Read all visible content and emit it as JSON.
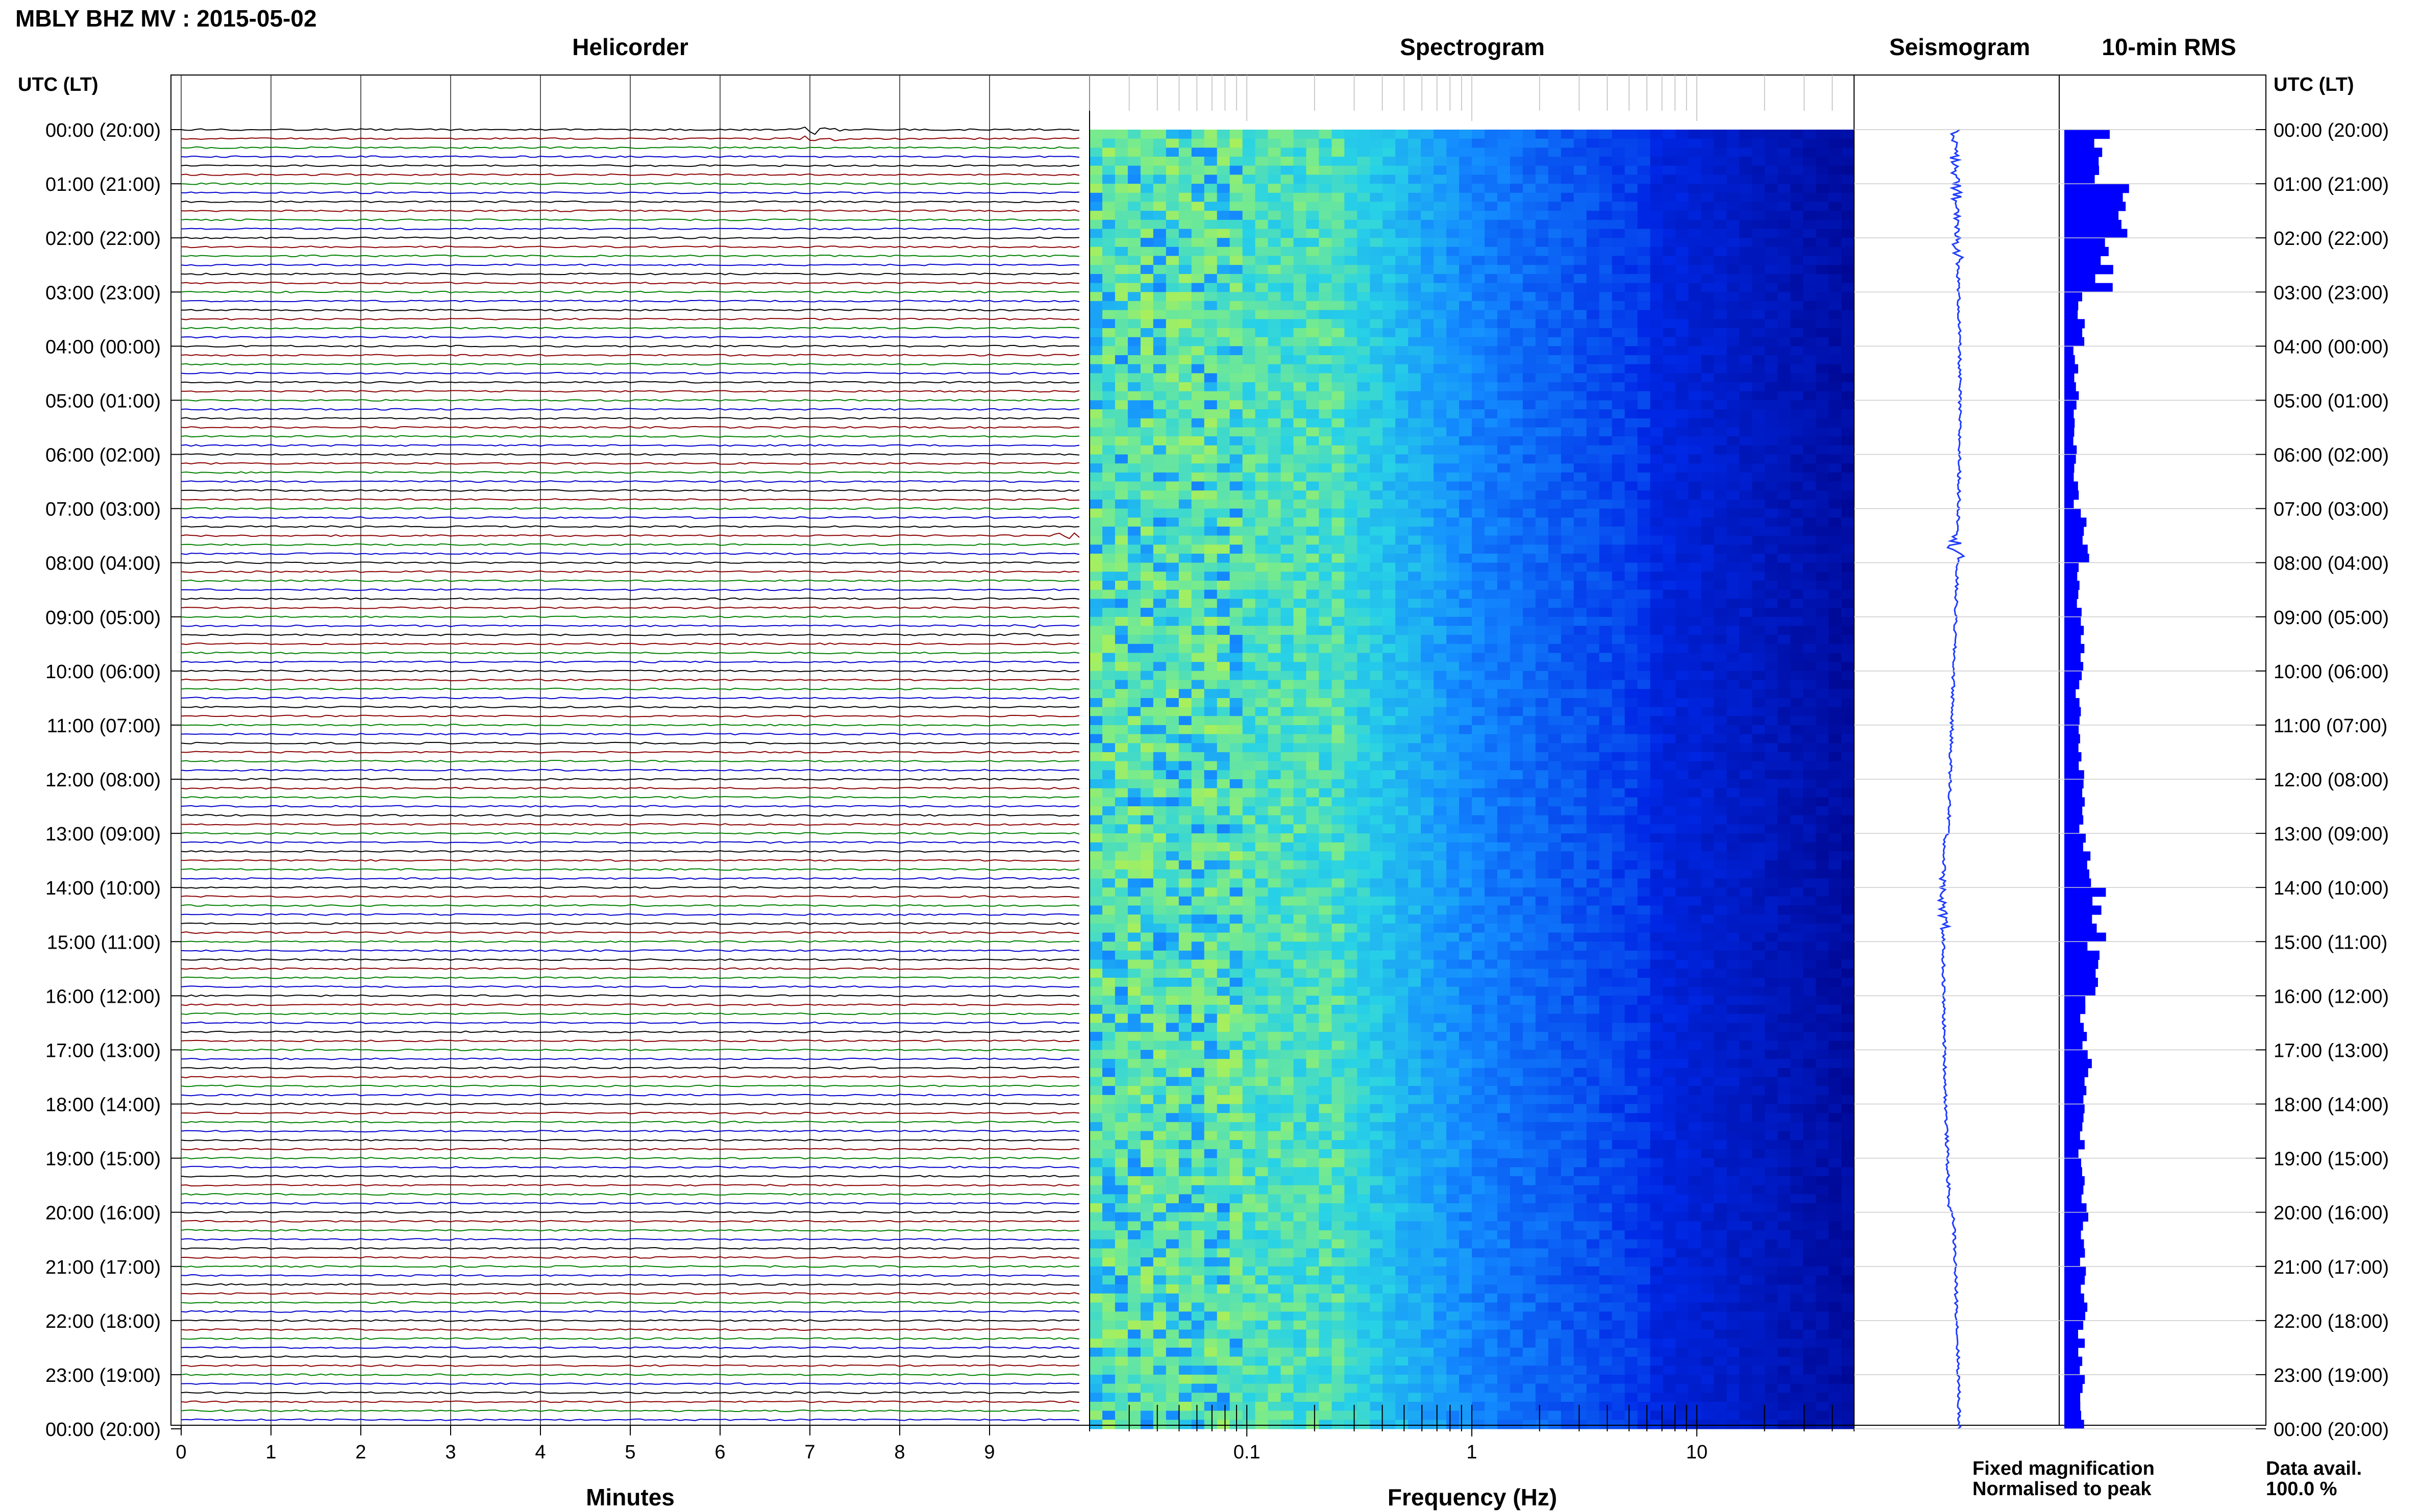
{
  "title": "MBLY BHZ MV : 2015-05-02",
  "panels": {
    "helicorder": "Helicorder",
    "spectrogram": "Spectrogram",
    "seismogram": "Seismogram",
    "rms": "10-min RMS"
  },
  "time_axis_label": "UTC (LT)",
  "time_labels": [
    "00:00 (20:00)",
    "01:00 (21:00)",
    "02:00 (22:00)",
    "03:00 (23:00)",
    "04:00 (00:00)",
    "05:00 (01:00)",
    "06:00 (02:00)",
    "07:00 (03:00)",
    "08:00 (04:00)",
    "09:00 (05:00)",
    "10:00 (06:00)",
    "11:00 (07:00)",
    "12:00 (08:00)",
    "13:00 (09:00)",
    "14:00 (10:00)",
    "15:00 (11:00)",
    "16:00 (12:00)",
    "17:00 (13:00)",
    "18:00 (14:00)",
    "19:00 (15:00)",
    "20:00 (16:00)",
    "21:00 (17:00)",
    "22:00 (18:00)",
    "23:00 (19:00)",
    "00:00 (20:00)"
  ],
  "minutes_axis": {
    "label": "Minutes",
    "ticks": [
      "0",
      "1",
      "2",
      "3",
      "4",
      "5",
      "6",
      "7",
      "8",
      "9"
    ]
  },
  "frequency_axis": {
    "label": "Frequency (Hz)",
    "ticks": [
      "0.1",
      "1",
      "10"
    ]
  },
  "legend": {
    "fixed": {
      "text": "Fixed magnification",
      "color": "#1a1aff"
    },
    "normalised": {
      "text": "Normalised to peak",
      "color": "#ff1a1a"
    }
  },
  "data_avail": {
    "label": "Data avail.",
    "value": "100.0 %"
  },
  "colors": {
    "trace_cycle": [
      "#000000",
      "#8b0000",
      "#008000",
      "#0000cd"
    ],
    "rms_bar": "#0000ff",
    "seismogram": "#1f3cff",
    "spec_low": "#00007f",
    "spec_high": "#c8f23c"
  },
  "chart_data": [
    {
      "type": "line",
      "name": "helicorder",
      "x_unit": "minutes",
      "xlim": [
        0,
        10
      ],
      "rows": 144,
      "row_minutes": 10,
      "events": [
        {
          "hour": 0.1,
          "minute": 7.1,
          "amplitude": "large"
        },
        {
          "hour": 7.5,
          "minute": 9.8,
          "amplitude": "medium"
        },
        {
          "hour": 9.2,
          "minute": 9.5,
          "amplitude": "small"
        }
      ]
    },
    {
      "type": "heatmap",
      "name": "spectrogram",
      "x_scale": "log",
      "xlim": [
        0.02,
        50
      ],
      "note_features": [
        "energy peak near 0.2-0.3 Hz",
        "low energy above 5 Hz"
      ]
    },
    {
      "type": "line",
      "name": "seismogram",
      "y_range_hours": [
        0,
        24
      ]
    },
    {
      "type": "bar",
      "name": "10-min RMS",
      "orientation": "horizontal",
      "hours": [
        0,
        1,
        2,
        3,
        4,
        5,
        6,
        7,
        8,
        9,
        10,
        11,
        12,
        13,
        14,
        15,
        16,
        17,
        18,
        19,
        20,
        21,
        22,
        23
      ],
      "values": [
        0.55,
        0.95,
        0.6,
        0.25,
        0.18,
        0.16,
        0.18,
        0.3,
        0.22,
        0.25,
        0.22,
        0.26,
        0.28,
        0.35,
        0.55,
        0.45,
        0.3,
        0.35,
        0.25,
        0.3,
        0.3,
        0.28,
        0.25,
        0.28
      ]
    }
  ]
}
